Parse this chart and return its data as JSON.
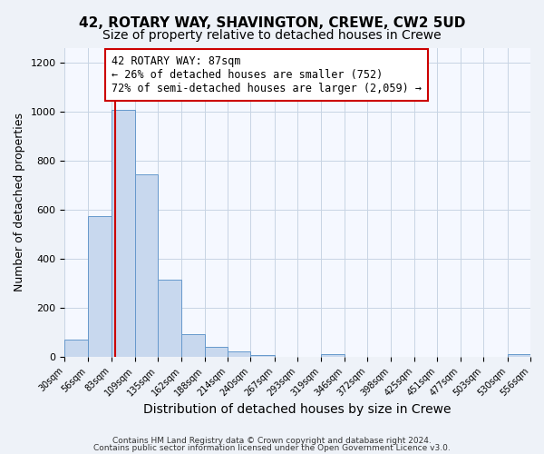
{
  "title": "42, ROTARY WAY, SHAVINGTON, CREWE, CW2 5UD",
  "subtitle": "Size of property relative to detached houses in Crewe",
  "xlabel": "Distribution of detached houses by size in Crewe",
  "ylabel": "Number of detached properties",
  "bin_edges": [
    30,
    56,
    83,
    109,
    135,
    162,
    188,
    214,
    240,
    267,
    293,
    319,
    346,
    372,
    398,
    425,
    451,
    477,
    503,
    530,
    556
  ],
  "bar_heights": [
    70,
    575,
    1005,
    745,
    315,
    95,
    40,
    22,
    8,
    0,
    0,
    12,
    0,
    0,
    0,
    0,
    0,
    0,
    0,
    12
  ],
  "bar_color": "#c8d8ee",
  "bar_edge_color": "#6699cc",
  "property_value": 87,
  "vline_color": "#cc0000",
  "annotation_line1": "42 ROTARY WAY: 87sqm",
  "annotation_line2": "← 26% of detached houses are smaller (752)",
  "annotation_line3": "72% of semi-detached houses are larger (2,059) →",
  "annotation_box_edge_color": "#cc0000",
  "annotation_fontsize": 8.5,
  "ylim": [
    0,
    1260
  ],
  "title_fontsize": 11,
  "subtitle_fontsize": 10,
  "xlabel_fontsize": 10,
  "ylabel_fontsize": 9,
  "footer_line1": "Contains HM Land Registry data © Crown copyright and database right 2024.",
  "footer_line2": "Contains public sector information licensed under the Open Government Licence v3.0.",
  "background_color": "#eef2f8",
  "plot_background_color": "#f5f8ff",
  "grid_color": "#c8d4e4"
}
